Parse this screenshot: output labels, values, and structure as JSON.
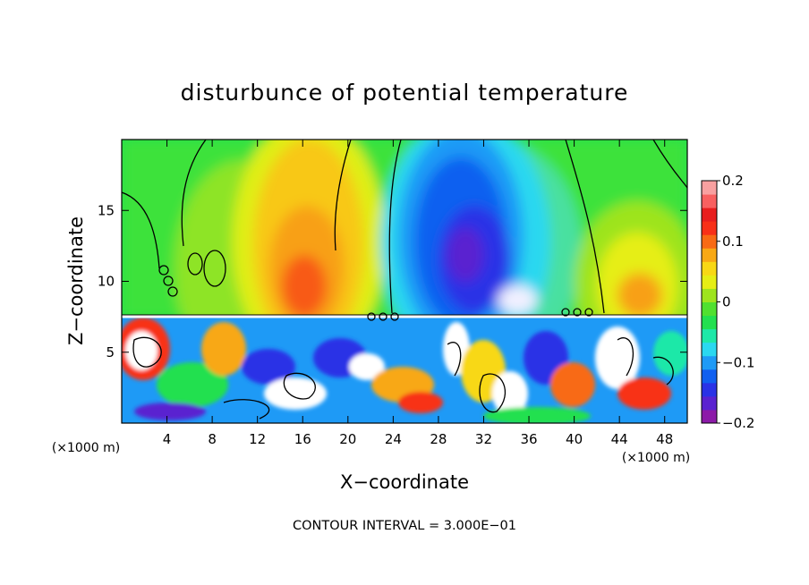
{
  "chart_data": {
    "type": "heatmap",
    "title": "disturbunce of potential temperature",
    "xlabel": "X−coordinate",
    "ylabel": "Z−coordinate",
    "x_unit_left": "(×1000 m)",
    "x_unit_right": "(×1000 m)",
    "footer": "CONTOUR INTERVAL = 3.000E−01",
    "xlim": [
      0,
      50
    ],
    "ylim": [
      0,
      20
    ],
    "x_ticks": [
      4,
      8,
      12,
      16,
      20,
      24,
      28,
      32,
      36,
      40,
      44,
      48
    ],
    "x_tick_labels": [
      "4",
      "8",
      "12",
      "16",
      "20",
      "24",
      "28",
      "32",
      "36",
      "40",
      "44",
      "48"
    ],
    "y_ticks": [
      5,
      10,
      15
    ],
    "y_tick_labels": [
      "5",
      "10",
      "15"
    ],
    "colorbar": {
      "range": [
        -0.2,
        0.2
      ],
      "tick_values": [
        0.2,
        0.1,
        0,
        -0.1,
        -0.2
      ],
      "tick_labels": [
        "0.2",
        "0.1",
        "0",
        "−0.1",
        "−0.2"
      ],
      "colors": [
        "#8c1aa8",
        "#5a22d0",
        "#2a32e6",
        "#1060f0",
        "#1e9af6",
        "#2ad8f0",
        "#1ee8a8",
        "#22e050",
        "#50e030",
        "#9ee41e",
        "#e6ee14",
        "#f8d814",
        "#f8a814",
        "#f86a14",
        "#f83018",
        "#e81e1e",
        "#f86060",
        "#f8a0a0"
      ]
    },
    "upper_region_features": [
      {
        "x": 16.5,
        "z": 10.5,
        "value": 0.15,
        "kind": "warm anomaly"
      },
      {
        "x": 30.5,
        "z": 12.0,
        "value": -0.2,
        "kind": "cold anomaly"
      },
      {
        "x": 46.0,
        "z": 9.5,
        "value": 0.1,
        "kind": "warm anomaly"
      }
    ],
    "stable_layer_height": 7.5
  }
}
